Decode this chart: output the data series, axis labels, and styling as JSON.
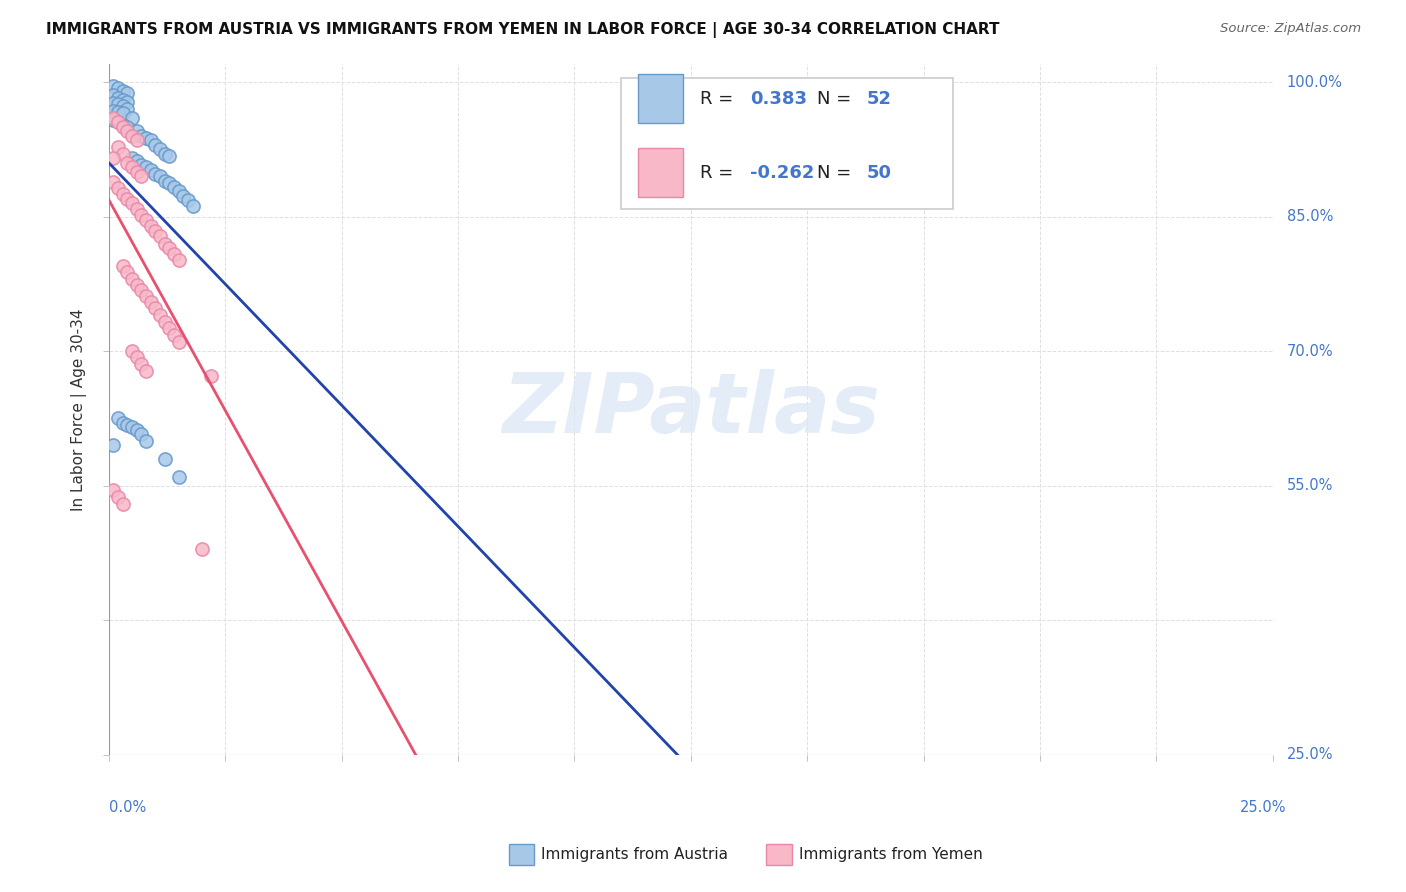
{
  "title": "IMMIGRANTS FROM AUSTRIA VS IMMIGRANTS FROM YEMEN IN LABOR FORCE | AGE 30-34 CORRELATION CHART",
  "source": "Source: ZipAtlas.com",
  "ylabel": "In Labor Force | Age 30-34",
  "legend_austria": "Immigrants from Austria",
  "legend_yemen": "Immigrants from Yemen",
  "R_austria": 0.383,
  "N_austria": 52,
  "R_yemen": -0.262,
  "N_yemen": 50,
  "austria_scatter_color": "#a8c8e8",
  "austria_edge_color": "#6699cc",
  "yemen_scatter_color": "#f8b8c8",
  "yemen_edge_color": "#e888a8",
  "austria_line_color": "#2244aa",
  "yemen_line_color": "#e85070",
  "watermark_color": "#dde8f5",
  "grid_color": "#e0e0e0",
  "right_label_color": "#4477cc",
  "scatter_austria": [
    [
      0.001,
      0.995
    ],
    [
      0.002,
      0.993
    ],
    [
      0.003,
      0.99
    ],
    [
      0.004,
      0.988
    ],
    [
      0.001,
      0.985
    ],
    [
      0.002,
      0.982
    ],
    [
      0.003,
      0.98
    ],
    [
      0.004,
      0.978
    ],
    [
      0.001,
      0.977
    ],
    [
      0.002,
      0.975
    ],
    [
      0.003,
      0.973
    ],
    [
      0.004,
      0.97
    ],
    [
      0.001,
      0.968
    ],
    [
      0.002,
      0.967
    ],
    [
      0.003,
      0.965
    ],
    [
      0.005,
      0.96
    ],
    [
      0.001,
      0.958
    ],
    [
      0.002,
      0.955
    ],
    [
      0.003,
      0.952
    ],
    [
      0.004,
      0.95
    ],
    [
      0.006,
      0.945
    ],
    [
      0.007,
      0.94
    ],
    [
      0.008,
      0.938
    ],
    [
      0.009,
      0.935
    ],
    [
      0.01,
      0.93
    ],
    [
      0.011,
      0.925
    ],
    [
      0.012,
      0.92
    ],
    [
      0.013,
      0.918
    ],
    [
      0.005,
      0.915
    ],
    [
      0.006,
      0.912
    ],
    [
      0.007,
      0.908
    ],
    [
      0.008,
      0.905
    ],
    [
      0.009,
      0.902
    ],
    [
      0.01,
      0.898
    ],
    [
      0.011,
      0.895
    ],
    [
      0.012,
      0.89
    ],
    [
      0.013,
      0.887
    ],
    [
      0.014,
      0.883
    ],
    [
      0.015,
      0.878
    ],
    [
      0.016,
      0.873
    ],
    [
      0.017,
      0.868
    ],
    [
      0.018,
      0.862
    ],
    [
      0.002,
      0.625
    ],
    [
      0.003,
      0.62
    ],
    [
      0.004,
      0.618
    ],
    [
      0.005,
      0.615
    ],
    [
      0.006,
      0.612
    ],
    [
      0.007,
      0.608
    ],
    [
      0.008,
      0.6
    ],
    [
      0.001,
      0.595
    ],
    [
      0.012,
      0.58
    ],
    [
      0.015,
      0.56
    ]
  ],
  "scatter_yemen": [
    [
      0.001,
      0.96
    ],
    [
      0.002,
      0.955
    ],
    [
      0.003,
      0.95
    ],
    [
      0.004,
      0.945
    ],
    [
      0.005,
      0.94
    ],
    [
      0.006,
      0.935
    ],
    [
      0.002,
      0.928
    ],
    [
      0.003,
      0.92
    ],
    [
      0.001,
      0.915
    ],
    [
      0.004,
      0.91
    ],
    [
      0.005,
      0.905
    ],
    [
      0.006,
      0.9
    ],
    [
      0.007,
      0.895
    ],
    [
      0.001,
      0.888
    ],
    [
      0.002,
      0.882
    ],
    [
      0.003,
      0.875
    ],
    [
      0.004,
      0.87
    ],
    [
      0.005,
      0.865
    ],
    [
      0.006,
      0.858
    ],
    [
      0.007,
      0.852
    ],
    [
      0.008,
      0.846
    ],
    [
      0.009,
      0.84
    ],
    [
      0.01,
      0.834
    ],
    [
      0.011,
      0.828
    ],
    [
      0.012,
      0.82
    ],
    [
      0.013,
      0.815
    ],
    [
      0.014,
      0.808
    ],
    [
      0.015,
      0.802
    ],
    [
      0.003,
      0.795
    ],
    [
      0.004,
      0.788
    ],
    [
      0.005,
      0.78
    ],
    [
      0.006,
      0.774
    ],
    [
      0.007,
      0.768
    ],
    [
      0.008,
      0.762
    ],
    [
      0.009,
      0.755
    ],
    [
      0.01,
      0.748
    ],
    [
      0.011,
      0.74
    ],
    [
      0.012,
      0.733
    ],
    [
      0.013,
      0.726
    ],
    [
      0.014,
      0.718
    ],
    [
      0.015,
      0.71
    ],
    [
      0.001,
      0.545
    ],
    [
      0.002,
      0.538
    ],
    [
      0.003,
      0.53
    ],
    [
      0.005,
      0.7
    ],
    [
      0.006,
      0.693
    ],
    [
      0.007,
      0.686
    ],
    [
      0.008,
      0.678
    ],
    [
      0.022,
      0.672
    ],
    [
      0.02,
      0.48
    ]
  ],
  "x_min": 0.0,
  "x_max": 0.25,
  "y_min": 0.25,
  "y_max": 1.02
}
